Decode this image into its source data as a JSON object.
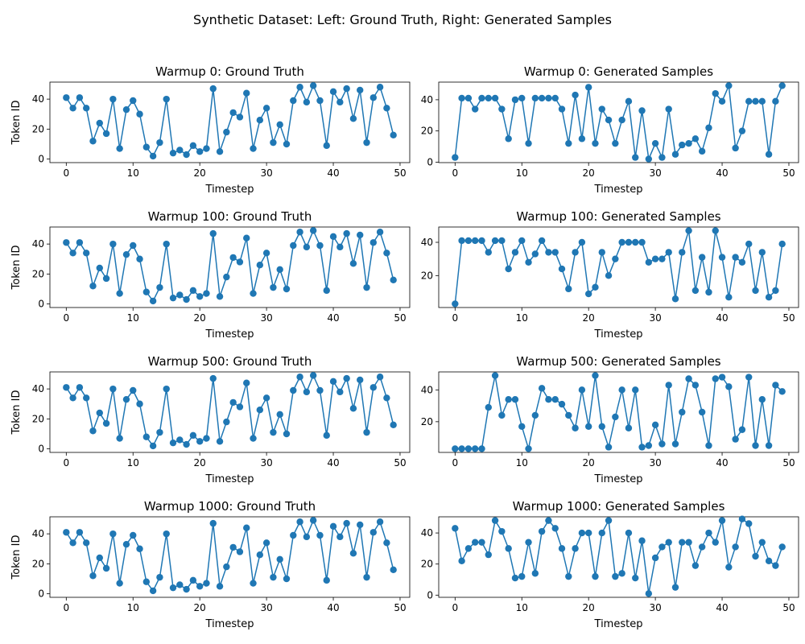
{
  "figure": {
    "suptitle": "Synthetic Dataset: Left: Ground Truth, Right: Generated Samples"
  },
  "style": {
    "line_color": "#1f77b4",
    "axis_color": "#000000",
    "background": "#ffffff"
  },
  "chart_data": [
    {
      "type": "line",
      "title": "Warmup 0: Ground Truth",
      "xlabel": "Timestep",
      "ylabel": "Token ID",
      "xlim": [
        -2.45,
        51.45
      ],
      "ylim": [
        -2.35,
        51.35
      ],
      "xticks": [
        0,
        10,
        20,
        30,
        40,
        50
      ],
      "yticks": [
        0,
        20,
        40
      ],
      "x": [
        0,
        1,
        2,
        3,
        4,
        5,
        6,
        7,
        8,
        9,
        10,
        11,
        12,
        13,
        14,
        15,
        16,
        17,
        18,
        19,
        20,
        21,
        22,
        23,
        24,
        25,
        26,
        27,
        28,
        29,
        30,
        31,
        32,
        33,
        34,
        35,
        36,
        37,
        38,
        39,
        40,
        41,
        42,
        43,
        44,
        45,
        46,
        47,
        48,
        49
      ],
      "y": [
        41,
        34,
        41,
        34,
        12,
        24,
        17,
        40,
        7,
        33,
        39,
        30,
        8,
        2,
        11,
        40,
        4,
        6,
        3,
        9,
        5,
        7,
        47,
        5,
        18,
        31,
        28,
        44,
        7,
        26,
        34,
        11,
        23,
        10,
        39,
        48,
        38,
        49,
        39,
        9,
        45,
        38,
        47,
        27,
        46,
        11,
        41,
        48,
        34,
        16
      ]
    },
    {
      "type": "line",
      "title": "Warmup 0: Generated Samples",
      "xlabel": "Timestep",
      "ylabel": "",
      "xlim": [
        -2.45,
        51.45
      ],
      "ylim": [
        -0.3,
        51.3
      ],
      "xticks": [
        0,
        10,
        20,
        30,
        40,
        50
      ],
      "yticks": [
        0,
        20,
        40
      ],
      "x": [
        0,
        1,
        2,
        3,
        4,
        5,
        6,
        7,
        8,
        9,
        10,
        11,
        12,
        13,
        14,
        15,
        16,
        17,
        18,
        19,
        20,
        21,
        22,
        23,
        24,
        25,
        26,
        27,
        28,
        29,
        30,
        31,
        32,
        33,
        34,
        35,
        36,
        37,
        38,
        39,
        40,
        41,
        42,
        43,
        44,
        45,
        46,
        47,
        48,
        49
      ],
      "y": [
        3,
        41,
        41,
        34,
        41,
        41,
        41,
        34,
        15,
        40,
        41,
        12,
        41,
        41,
        41,
        41,
        34,
        12,
        43,
        15,
        48,
        12,
        34,
        27,
        12,
        27,
        39,
        3,
        33,
        2,
        12,
        3,
        34,
        5,
        11,
        12,
        15,
        7,
        22,
        44,
        39,
        49,
        9,
        20,
        39,
        39,
        39,
        5,
        39,
        49
      ]
    },
    {
      "type": "line",
      "title": "Warmup 100: Ground Truth",
      "xlabel": "Timestep",
      "ylabel": "Token ID",
      "xlim": [
        -2.45,
        51.45
      ],
      "ylim": [
        -2.35,
        51.35
      ],
      "xticks": [
        0,
        10,
        20,
        30,
        40,
        50
      ],
      "yticks": [
        0,
        20,
        40
      ],
      "x": [
        0,
        1,
        2,
        3,
        4,
        5,
        6,
        7,
        8,
        9,
        10,
        11,
        12,
        13,
        14,
        15,
        16,
        17,
        18,
        19,
        20,
        21,
        22,
        23,
        24,
        25,
        26,
        27,
        28,
        29,
        30,
        31,
        32,
        33,
        34,
        35,
        36,
        37,
        38,
        39,
        40,
        41,
        42,
        43,
        44,
        45,
        46,
        47,
        48,
        49
      ],
      "y": [
        41,
        34,
        41,
        34,
        12,
        24,
        17,
        40,
        7,
        33,
        39,
        30,
        8,
        2,
        11,
        40,
        4,
        6,
        3,
        9,
        5,
        7,
        47,
        5,
        18,
        31,
        28,
        44,
        7,
        26,
        34,
        11,
        23,
        10,
        39,
        48,
        38,
        49,
        39,
        9,
        45,
        38,
        47,
        27,
        46,
        11,
        41,
        48,
        34,
        16
      ]
    },
    {
      "type": "line",
      "title": "Warmup 100: Generated Samples",
      "xlabel": "Timestep",
      "ylabel": "",
      "xlim": [
        -2.45,
        51.45
      ],
      "ylim": [
        0.8,
        49.2
      ],
      "xticks": [
        0,
        10,
        20,
        30,
        40,
        50
      ],
      "yticks": [
        20,
        40
      ],
      "x": [
        0,
        1,
        2,
        3,
        4,
        5,
        6,
        7,
        8,
        9,
        10,
        11,
        12,
        13,
        14,
        15,
        16,
        17,
        18,
        19,
        20,
        21,
        22,
        23,
        24,
        25,
        26,
        27,
        28,
        29,
        30,
        31,
        32,
        33,
        34,
        35,
        36,
        37,
        38,
        39,
        40,
        41,
        42,
        43,
        44,
        45,
        46,
        47,
        48,
        49
      ],
      "y": [
        3,
        41,
        41,
        41,
        41,
        34,
        41,
        41,
        24,
        34,
        41,
        28,
        33,
        41,
        34,
        34,
        24,
        12,
        34,
        40,
        9,
        13,
        34,
        20,
        30,
        40,
        40,
        40,
        40,
        28,
        30,
        30,
        34,
        6,
        34,
        47,
        11,
        31,
        10,
        47,
        31,
        7,
        31,
        28,
        39,
        11,
        34,
        7,
        11,
        39
      ]
    },
    {
      "type": "line",
      "title": "Warmup 500: Ground Truth",
      "xlabel": "Timestep",
      "ylabel": "Token ID",
      "xlim": [
        -2.45,
        51.45
      ],
      "ylim": [
        -2.35,
        51.35
      ],
      "xticks": [
        0,
        10,
        20,
        30,
        40,
        50
      ],
      "yticks": [
        0,
        20,
        40
      ],
      "x": [
        0,
        1,
        2,
        3,
        4,
        5,
        6,
        7,
        8,
        9,
        10,
        11,
        12,
        13,
        14,
        15,
        16,
        17,
        18,
        19,
        20,
        21,
        22,
        23,
        24,
        25,
        26,
        27,
        28,
        29,
        30,
        31,
        32,
        33,
        34,
        35,
        36,
        37,
        38,
        39,
        40,
        41,
        42,
        43,
        44,
        45,
        46,
        47,
        48,
        49
      ],
      "y": [
        41,
        34,
        41,
        34,
        12,
        24,
        17,
        40,
        7,
        33,
        39,
        30,
        8,
        2,
        11,
        40,
        4,
        6,
        3,
        9,
        5,
        7,
        47,
        5,
        18,
        31,
        28,
        44,
        7,
        26,
        34,
        11,
        23,
        10,
        39,
        48,
        38,
        49,
        39,
        9,
        45,
        38,
        47,
        27,
        46,
        11,
        41,
        48,
        34,
        16
      ]
    },
    {
      "type": "line",
      "title": "Warmup 500: Generated Samples",
      "xlabel": "Timestep",
      "ylabel": "",
      "xlim": [
        -2.45,
        51.45
      ],
      "ylim": [
        0.7,
        51.3
      ],
      "xticks": [
        0,
        10,
        20,
        30,
        40,
        50
      ],
      "yticks": [
        20,
        40
      ],
      "x": [
        0,
        1,
        2,
        3,
        4,
        5,
        6,
        7,
        8,
        9,
        10,
        11,
        12,
        13,
        14,
        15,
        16,
        17,
        18,
        19,
        20,
        21,
        22,
        23,
        24,
        25,
        26,
        27,
        28,
        29,
        30,
        31,
        32,
        33,
        34,
        35,
        36,
        37,
        38,
        39,
        40,
        41,
        42,
        43,
        44,
        45,
        46,
        47,
        48,
        49
      ],
      "y": [
        3,
        3,
        3,
        3,
        3,
        29,
        49,
        24,
        34,
        34,
        17,
        3,
        24,
        41,
        34,
        34,
        31,
        24,
        16,
        40,
        17,
        49,
        17,
        4,
        23,
        40,
        16,
        40,
        4,
        5,
        18,
        6,
        43,
        6,
        26,
        47,
        43,
        26,
        5,
        47,
        48,
        42,
        9,
        15,
        48,
        5,
        34,
        5,
        43,
        39
      ]
    },
    {
      "type": "line",
      "title": "Warmup 1000: Ground Truth",
      "xlabel": "Timestep",
      "ylabel": "Token ID",
      "xlim": [
        -2.45,
        51.45
      ],
      "ylim": [
        -2.35,
        51.35
      ],
      "xticks": [
        0,
        10,
        20,
        30,
        40,
        50
      ],
      "yticks": [
        0,
        20,
        40
      ],
      "x": [
        0,
        1,
        2,
        3,
        4,
        5,
        6,
        7,
        8,
        9,
        10,
        11,
        12,
        13,
        14,
        15,
        16,
        17,
        18,
        19,
        20,
        21,
        22,
        23,
        24,
        25,
        26,
        27,
        28,
        29,
        30,
        31,
        32,
        33,
        34,
        35,
        36,
        37,
        38,
        39,
        40,
        41,
        42,
        43,
        44,
        45,
        46,
        47,
        48,
        49
      ],
      "y": [
        41,
        34,
        41,
        34,
        12,
        24,
        17,
        40,
        7,
        33,
        39,
        30,
        8,
        2,
        11,
        40,
        4,
        6,
        3,
        9,
        5,
        7,
        47,
        5,
        18,
        31,
        28,
        44,
        7,
        26,
        34,
        11,
        23,
        10,
        39,
        48,
        38,
        49,
        39,
        9,
        45,
        38,
        47,
        27,
        46,
        11,
        41,
        48,
        34,
        16
      ]
    },
    {
      "type": "line",
      "title": "Warmup 1000: Generated Samples",
      "xlabel": "Timestep",
      "ylabel": "",
      "xlim": [
        -2.45,
        51.45
      ],
      "ylim": [
        -1.4,
        50.4
      ],
      "xticks": [
        0,
        10,
        20,
        30,
        40,
        50
      ],
      "yticks": [
        0,
        20,
        40
      ],
      "x": [
        0,
        1,
        2,
        3,
        4,
        5,
        6,
        7,
        8,
        9,
        10,
        11,
        12,
        13,
        14,
        15,
        16,
        17,
        18,
        19,
        20,
        21,
        22,
        23,
        24,
        25,
        26,
        27,
        28,
        29,
        30,
        31,
        32,
        33,
        34,
        35,
        36,
        37,
        38,
        39,
        40,
        41,
        42,
        43,
        44,
        45,
        46,
        47,
        48,
        49
      ],
      "y": [
        43,
        22,
        30,
        34,
        34,
        26,
        48,
        41,
        30,
        11,
        12,
        34,
        14,
        41,
        48,
        43,
        30,
        12,
        30,
        40,
        40,
        12,
        40,
        48,
        12,
        14,
        40,
        11,
        35,
        1,
        24,
        31,
        34,
        5,
        34,
        34,
        19,
        31,
        40,
        34,
        48,
        18,
        31,
        49,
        46,
        25,
        34,
        22,
        19,
        31
      ]
    }
  ]
}
